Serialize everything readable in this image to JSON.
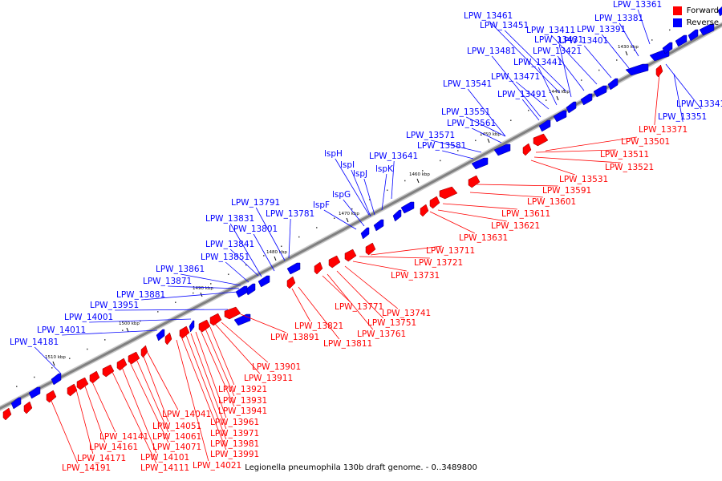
{
  "caption": "Legionella pneumophila 130b draft genome. - 0..3489800",
  "legend": {
    "forward": {
      "label": "Forward",
      "color": "#ff0000"
    },
    "reverse": {
      "label": "Reverse",
      "color": "#0000ff"
    }
  },
  "colors": {
    "forward": "#ff0000",
    "reverse": "#0000ff",
    "backbone": "#808080"
  },
  "ticks": [
    "1430 kbp",
    "1440 kbp",
    "1450 kbp",
    "1460 kbp",
    "1470 kbp",
    "1480 kbp",
    "1490 kbp",
    "1500 kbp",
    "1510 kbp"
  ],
  "reverse_labels": [
    "LPW_13361",
    "LPW_13381",
    "LPW_13391",
    "LPW_13401",
    "LPW_13411",
    "LPW_13421",
    "LPW_13431",
    "LPW_13441",
    "LPW_13451",
    "LPW_13461",
    "LPW_13471",
    "LPW_13481",
    "LPW_13491",
    "LPW_13541",
    "LPW_13551",
    "LPW_13561",
    "LPW_13571",
    "LPW_13581",
    "LPW_13641",
    "lspH",
    "lspI",
    "lspJ",
    "lspK",
    "lspG",
    "lspF",
    "LPW_13791",
    "LPW_13781",
    "LPW_13831",
    "LPW_13801",
    "LPW_13841",
    "LPW_13851",
    "LPW_13861",
    "LPW_13871",
    "LPW_13881",
    "LPW_13951",
    "LPW_14001",
    "LPW_14011",
    "LPW_14181",
    "LPW_13341",
    "LPW_13351"
  ],
  "forward_labels": [
    "LPW_13371",
    "LPW_13501",
    "LPW_13511",
    "LPW_13521",
    "LPW_13531",
    "LPW_13591",
    "LPW_13601",
    "LPW_13611",
    "LPW_13621",
    "LPW_13631",
    "LPW_13711",
    "LPW_13721",
    "LPW_13731",
    "LPW_13741",
    "LPW_13751",
    "LPW_13761",
    "LPW_13771",
    "LPW_13821",
    "LPW_13811",
    "LPW_13891",
    "LPW_13901",
    "LPW_13911",
    "LPW_13921",
    "LPW_13931",
    "LPW_13941",
    "LPW_13961",
    "LPW_13971",
    "LPW_13981",
    "LPW_13991",
    "LPW_14021",
    "LPW_14041",
    "LPW_14051",
    "LPW_14061",
    "LPW_14071",
    "LPW_14101",
    "LPW_14111",
    "LPW_14141",
    "LPW_14161",
    "LPW_14171",
    "LPW_14191"
  ]
}
